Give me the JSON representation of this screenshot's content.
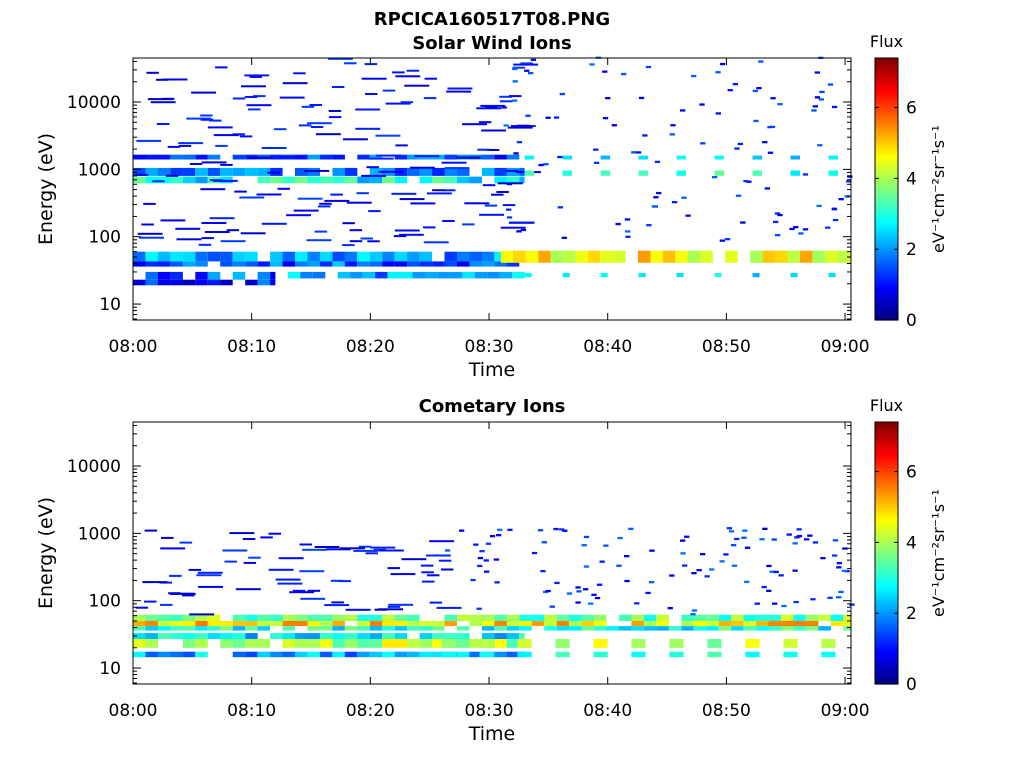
{
  "figure": {
    "title": "RPCICA160517T08.PNG"
  },
  "colormap_anchors": [
    "#00007f",
    "#0000ff",
    "#007fff",
    "#00ffff",
    "#7fff7f",
    "#ffff00",
    "#ff7f00",
    "#ff0000",
    "#7f0000"
  ],
  "chart_data": [
    {
      "type": "heatmap",
      "title": "Solar Wind Ions",
      "xlabel": "Time",
      "ylabel": "Energy (eV)",
      "x_ticks": [
        "08:00",
        "08:10",
        "08:20",
        "08:30",
        "08:40",
        "08:50",
        "09:00"
      ],
      "x_range_minutes": [
        0,
        60.5
      ],
      "y_scale": "log",
      "y_ticks": [
        10,
        100,
        1000,
        10000
      ],
      "y_tick_labels": [
        "10",
        "100",
        "1000",
        "10000"
      ],
      "y_range": [
        5.8,
        45000
      ],
      "colorbar": {
        "label": "Flux",
        "unit": "eV⁻¹cm⁻²sr⁻¹s⁻¹",
        "ticks": [
          0,
          2,
          4,
          6
        ],
        "tick_labels": [
          "0",
          "2",
          "4",
          "6"
        ],
        "range": [
          0,
          7.4
        ]
      },
      "bands": [
        {
          "t0": 0,
          "t1": 33,
          "e0": 43,
          "e1": 60,
          "v": 2.0
        },
        {
          "t0": 0,
          "t1": 33,
          "e0": 36,
          "e1": 43,
          "v": 1.6
        },
        {
          "t0": 31,
          "t1": 60.5,
          "e0": 41,
          "e1": 62,
          "v": 4.6
        },
        {
          "t0": 0,
          "t1": 33,
          "e0": 1400,
          "e1": 1650,
          "v": 1.4
        },
        {
          "t0": 0,
          "t1": 33,
          "e0": 800,
          "e1": 1050,
          "v": 1.8
        },
        {
          "t0": 0,
          "t1": 33,
          "e0": 620,
          "e1": 780,
          "v": 2.8
        },
        {
          "t0": 0,
          "t1": 12,
          "e0": 23,
          "e1": 30,
          "v": 1.6
        },
        {
          "t0": 0,
          "t1": 12,
          "e0": 19,
          "e1": 23,
          "v": 1.2
        },
        {
          "t0": 12,
          "t1": 33,
          "e0": 24,
          "e1": 30,
          "v": 2.1
        }
      ],
      "scatter_range": {
        "t": [
          31,
          60.5
        ],
        "e": [
          80,
          45000
        ]
      },
      "sparse_range": {
        "t": [
          0,
          33
        ],
        "e": [
          70,
          45000
        ]
      }
    },
    {
      "type": "heatmap",
      "title": "Cometary Ions",
      "xlabel": "Time",
      "ylabel": "Energy (eV)",
      "x_ticks": [
        "08:00",
        "08:10",
        "08:20",
        "08:30",
        "08:40",
        "08:50",
        "09:00"
      ],
      "x_range_minutes": [
        0,
        60.5
      ],
      "y_scale": "log",
      "y_ticks": [
        10,
        100,
        1000,
        10000
      ],
      "y_tick_labels": [
        "10",
        "100",
        "1000",
        "10000"
      ],
      "y_range": [
        5.8,
        45000
      ],
      "colorbar": {
        "label": "Flux",
        "unit": "eV⁻¹cm⁻²sr⁻¹s⁻¹",
        "ticks": [
          0,
          2,
          4,
          6
        ],
        "tick_labels": [
          "0",
          "2",
          "4",
          "6"
        ],
        "range": [
          0,
          7.4
        ]
      },
      "bands": [
        {
          "t0": 0,
          "t1": 60.5,
          "e0": 50,
          "e1": 62,
          "v": 3.6
        },
        {
          "t0": 0,
          "t1": 60.5,
          "e0": 42,
          "e1": 50,
          "v": 4.8
        },
        {
          "t0": 0,
          "t1": 60.5,
          "e0": 36,
          "e1": 42,
          "v": 3.0
        },
        {
          "t0": 0,
          "t1": 33,
          "e0": 27,
          "e1": 33,
          "v": 2.6
        },
        {
          "t0": 0,
          "t1": 33,
          "e0": 20,
          "e1": 27,
          "v": 4.0
        },
        {
          "t0": 0,
          "t1": 33,
          "e0": 14.5,
          "e1": 17.5,
          "v": 2.2
        }
      ],
      "scatter_range": {
        "t": [
          26,
          60.5
        ],
        "e": [
          60,
          1200
        ]
      },
      "sparse_range": {
        "t": [
          0,
          26
        ],
        "e": [
          60,
          1100
        ]
      }
    }
  ]
}
